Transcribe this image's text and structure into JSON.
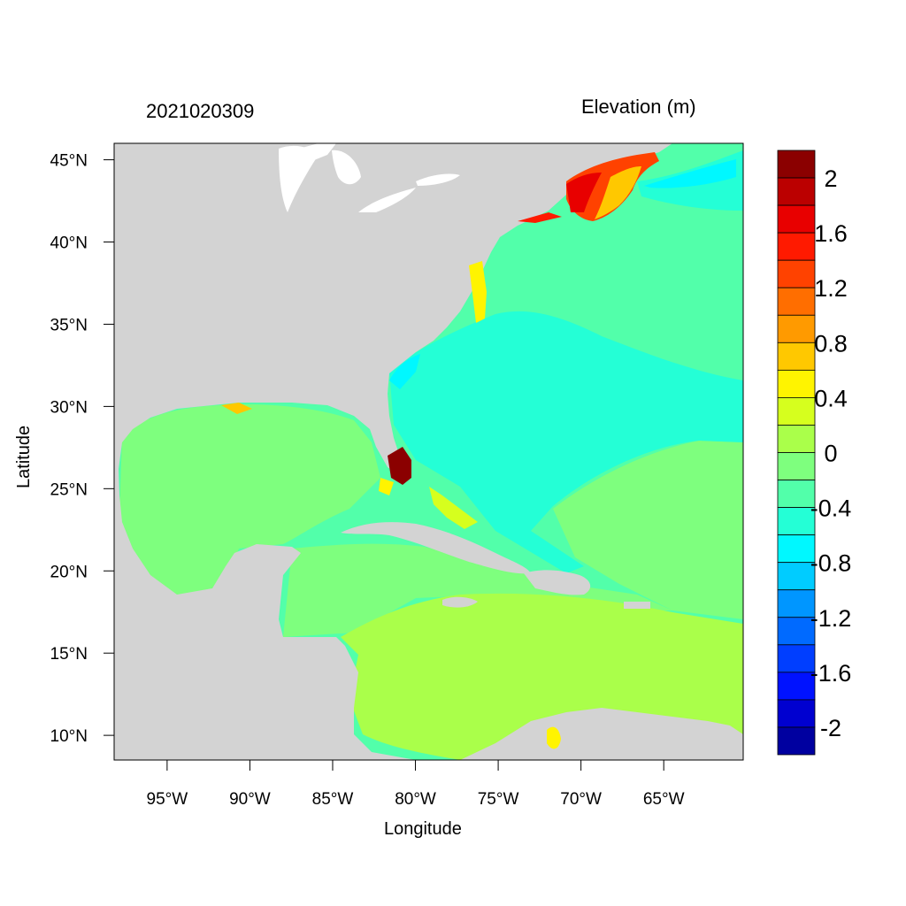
{
  "map": {
    "timestamp": "2021020309",
    "field_label": "Elevation (m)",
    "xlabel": "Longitude",
    "ylabel": "Latitude",
    "lon_range": [
      -98.2,
      -60.2
    ],
    "lat_range": [
      8.5,
      46
    ],
    "lon_ticks": [
      {
        "value": -95,
        "label": "95°W"
      },
      {
        "value": -90,
        "label": "90°W"
      },
      {
        "value": -85,
        "label": "85°W"
      },
      {
        "value": -80,
        "label": "80°W"
      },
      {
        "value": -75,
        "label": "75°W"
      },
      {
        "value": -70,
        "label": "70°W"
      },
      {
        "value": -65,
        "label": "65°W"
      }
    ],
    "lat_ticks": [
      {
        "value": 45,
        "label": "45°N"
      },
      {
        "value": 40,
        "label": "40°N"
      },
      {
        "value": 35,
        "label": "35°N"
      },
      {
        "value": 30,
        "label": "30°N"
      },
      {
        "value": 25,
        "label": "25°N"
      },
      {
        "value": 20,
        "label": "20°N"
      },
      {
        "value": 15,
        "label": "15°N"
      },
      {
        "value": 10,
        "label": "10°N"
      }
    ],
    "land_color": "#d3d3d3"
  },
  "colorbar": {
    "colors_top_to_bottom": [
      "#8b0000",
      "#bb0000",
      "#e80000",
      "#ff1a00",
      "#ff4200",
      "#ff6e00",
      "#ff9a00",
      "#ffc800",
      "#fff400",
      "#d6ff1e",
      "#aaff4a",
      "#7eff7e",
      "#52ffaa",
      "#24ffd6",
      "#00f8ff",
      "#00ccff",
      "#0096ff",
      "#006aff",
      "#003eff",
      "#0012ff",
      "#0000d0",
      "#0000a0"
    ],
    "labels": [
      {
        "after_bin": 1,
        "text": "2"
      },
      {
        "after_bin": 3,
        "text": "1.6"
      },
      {
        "after_bin": 5,
        "text": "1.2"
      },
      {
        "after_bin": 7,
        "text": "0.8"
      },
      {
        "after_bin": 9,
        "text": "0.4"
      },
      {
        "after_bin": 11,
        "text": "0"
      },
      {
        "after_bin": 13,
        "text": "-0.4"
      },
      {
        "after_bin": 15,
        "text": "-0.8"
      },
      {
        "after_bin": 17,
        "text": "-1.2"
      },
      {
        "after_bin": 19,
        "text": "-1.6"
      },
      {
        "after_bin": 21,
        "text": "-2"
      }
    ]
  }
}
